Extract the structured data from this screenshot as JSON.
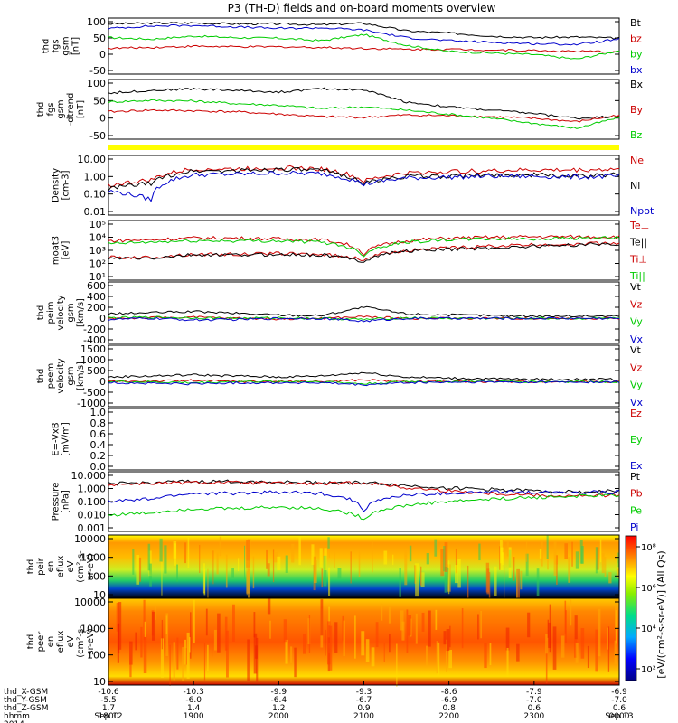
{
  "title": "P3 (TH-D) fields and on-board moments overview",
  "colors": {
    "black": "#000000",
    "red": "#cc0000",
    "green": "#00cc00",
    "blue": "#0000cc",
    "yellow": "#ffff00"
  },
  "panels": [
    {
      "id": "fgs_gsm",
      "ylabel": [
        "thd",
        "fgs",
        "gsm",
        "[nT]"
      ],
      "ticks": [
        "100",
        "50",
        "0",
        "-50"
      ],
      "scale": "linear",
      "legend": [
        {
          "label": "Bt",
          "color": "black"
        },
        {
          "label": "bz",
          "color": "red"
        },
        {
          "label": "by",
          "color": "green"
        },
        {
          "label": "bx",
          "color": "blue"
        }
      ]
    },
    {
      "id": "fgs_gsm_dtrend",
      "ylabel": [
        "thd",
        "fgs",
        "gsm",
        "-dtrend",
        "[nT]"
      ],
      "ticks": [
        "100",
        "50",
        "0",
        "-50"
      ],
      "scale": "linear",
      "legend": [
        {
          "label": "Bx",
          "color": "black"
        },
        {
          "label": "By",
          "color": "red"
        },
        {
          "label": "Bz",
          "color": "green"
        }
      ]
    },
    {
      "id": "density",
      "ylabel": [
        "Density",
        "[cm-3]"
      ],
      "ticks": [
        "10.00",
        "1.00",
        "0.10",
        "0.01"
      ],
      "scale": "log",
      "legend": [
        {
          "label": "Ne",
          "color": "red"
        },
        {
          "label": "Ni",
          "color": "black"
        },
        {
          "label": "Npot",
          "color": "blue"
        }
      ]
    },
    {
      "id": "moat3",
      "ylabel": [
        "moat3",
        "[eV]"
      ],
      "ticks": [
        "10⁵",
        "10⁴",
        "10³",
        "10²",
        "10¹"
      ],
      "scale": "log",
      "legend": [
        {
          "label": "Te⊥",
          "color": "red"
        },
        {
          "label": "Te||",
          "color": "black"
        },
        {
          "label": "Ti⊥",
          "color": "red"
        },
        {
          "label": "Ti||",
          "color": "green"
        }
      ]
    },
    {
      "id": "peim_velocity",
      "ylabel": [
        "thd",
        "peim",
        "velocity",
        "gsm",
        "[km/s]"
      ],
      "ticks": [
        "600",
        "400",
        "200",
        "0",
        "-200",
        "-400"
      ],
      "scale": "linear",
      "legend": [
        {
          "label": "Vt",
          "color": "black"
        },
        {
          "label": "Vz",
          "color": "red"
        },
        {
          "label": "Vy",
          "color": "green"
        },
        {
          "label": "Vx",
          "color": "blue"
        }
      ]
    },
    {
      "id": "peem_velocity",
      "ylabel": [
        "thd",
        "peem",
        "velocity",
        "gsm",
        "[km/s]"
      ],
      "ticks": [
        "1500",
        "1000",
        "500",
        "0",
        "-500",
        "-1000"
      ],
      "scale": "linear",
      "legend": [
        {
          "label": "Vt",
          "color": "black"
        },
        {
          "label": "Vz",
          "color": "red"
        },
        {
          "label": "Vy",
          "color": "green"
        },
        {
          "label": "Vx",
          "color": "blue"
        }
      ]
    },
    {
      "id": "efield",
      "ylabel": [
        "E=-VxB",
        "[mV/m]"
      ],
      "ticks": [
        "1.0",
        "0.8",
        "0.6",
        "0.4",
        "0.2",
        "0.0"
      ],
      "scale": "linear",
      "legend": [
        {
          "label": "Ez",
          "color": "red"
        },
        {
          "label": "Ey",
          "color": "green"
        },
        {
          "label": "Ex",
          "color": "blue"
        }
      ]
    },
    {
      "id": "pressure",
      "ylabel": [
        "Pressure",
        "[nPa]"
      ],
      "ticks": [
        "10.000",
        "1.000",
        "0.100",
        "0.010",
        "0.001"
      ],
      "scale": "log",
      "legend": [
        {
          "label": "Pt",
          "color": "black"
        },
        {
          "label": "Pb",
          "color": "red"
        },
        {
          "label": "Pe",
          "color": "green"
        },
        {
          "label": "Pi",
          "color": "blue"
        }
      ]
    },
    {
      "id": "peir_en_eflux",
      "ylabel": [
        "thd",
        "peir",
        "en",
        "eflux",
        "eV",
        "(cm²-s-",
        "sr-eV)"
      ],
      "ticks": [
        "10000",
        "1000",
        "100",
        "10"
      ],
      "scale": "log"
    },
    {
      "id": "peer_en_eflux",
      "ylabel": [
        "thd",
        "peer",
        "en",
        "eflux",
        "eV",
        "(cm²-s-",
        "sr-eV)"
      ],
      "ticks": [
        "10000",
        "1000",
        "100",
        "10"
      ],
      "scale": "log"
    }
  ],
  "colorbar": {
    "ticks": [
      "10⁸",
      "10⁶",
      "10⁴",
      "10²"
    ],
    "label": "[eV/(cm²-s-sr-eV)] (All Qs)"
  },
  "xaxis": {
    "row_labels": [
      "thd_X-GSM",
      "thd_Y-GSM",
      "thd_Z-GSM",
      "hhmm",
      "2014"
    ],
    "columns": [
      {
        "x": "-10.6",
        "y": "-5.5",
        "z": "1.7",
        "hhmm": "1800",
        "date": "Sep 12"
      },
      {
        "x": "-10.3",
        "y": "-6.0",
        "z": "1.4",
        "hhmm": "1900",
        "date": ""
      },
      {
        "x": "-9.9",
        "y": "-6.4",
        "z": "1.2",
        "hhmm": "2000",
        "date": ""
      },
      {
        "x": "-9.3",
        "y": "-6.7",
        "z": "0.9",
        "hhmm": "2100",
        "date": ""
      },
      {
        "x": "-8.6",
        "y": "-6.9",
        "z": "0.8",
        "hhmm": "2200",
        "date": ""
      },
      {
        "x": "-7.9",
        "y": "-7.0",
        "z": "0.6",
        "hhmm": "2300",
        "date": ""
      },
      {
        "x": "-6.9",
        "y": "-7.0",
        "z": "0.6",
        "hhmm": "0000",
        "date": "Sep 13"
      }
    ]
  },
  "chart_data": {
    "type": "line",
    "title": "P3 (TH-D) fields and on-board moments overview",
    "x": [
      "1800",
      "1830",
      "1900",
      "1930",
      "2000",
      "2030",
      "2100",
      "2130",
      "2200",
      "2230",
      "2300",
      "2330",
      "0000"
    ],
    "panels": [
      {
        "id": "fgs_gsm",
        "ylim": [
          -60,
          105
        ],
        "series": [
          {
            "name": "Bt",
            "color": "black",
            "values": [
              95,
              97,
              98,
              95,
              95,
              92,
              97,
              72,
              65,
              55,
              50,
              52,
              48
            ]
          },
          {
            "name": "bz",
            "color": "red",
            "values": [
              15,
              18,
              22,
              20,
              20,
              18,
              15,
              12,
              12,
              10,
              8,
              5,
              4
            ]
          },
          {
            "name": "by",
            "color": "green",
            "values": [
              50,
              45,
              55,
              50,
              48,
              40,
              60,
              25,
              5,
              0,
              -5,
              -20,
              8
            ]
          },
          {
            "name": "bx",
            "color": "blue",
            "values": [
              80,
              88,
              90,
              85,
              80,
              82,
              75,
              50,
              40,
              35,
              30,
              28,
              45
            ]
          }
        ]
      },
      {
        "id": "fgs_gsm_dtrend",
        "ylim": [
          -60,
          105
        ],
        "series": [
          {
            "name": "Bx",
            "color": "black",
            "values": [
              72,
              80,
              85,
              80,
              75,
              85,
              82,
              45,
              30,
              20,
              10,
              -5,
              2
            ]
          },
          {
            "name": "By",
            "color": "red",
            "values": [
              15,
              20,
              18,
              15,
              8,
              0,
              -2,
              5,
              3,
              0,
              -5,
              -15,
              5
            ]
          },
          {
            "name": "Bz",
            "color": "green",
            "values": [
              45,
              50,
              48,
              40,
              35,
              25,
              30,
              20,
              8,
              -5,
              -20,
              -35,
              -2
            ]
          }
        ]
      },
      {
        "id": "density",
        "ylim": [
          0.01,
          10
        ],
        "series": [
          {
            "name": "Ne",
            "color": "red",
            "values": [
              0.3,
              0.6,
              2.5,
              2.5,
              3,
              2.5,
              0.5,
              1.5,
              1.8,
              2,
              2.2,
              2.2,
              2.5
            ]
          },
          {
            "name": "Ni",
            "color": "black",
            "values": [
              0.2,
              0.4,
              2.0,
              2.0,
              2.5,
              2.0,
              0.4,
              1.0,
              1.0,
              1.2,
              1.2,
              1.0,
              1.2
            ]
          },
          {
            "name": "Npot",
            "color": "blue",
            "values": [
              0.15,
              0.05,
              1.2,
              1.3,
              1.5,
              1.4,
              0.35,
              0.8,
              0.9,
              1.0,
              1.0,
              0.9,
              1.0
            ]
          }
        ]
      },
      {
        "id": "moat3",
        "ylim": [
          10,
          100000
        ],
        "series": [
          {
            "name": "Te⊥",
            "color": "red",
            "values": [
              300,
              300,
              500,
              500,
              600,
              500,
              200,
              1000,
              1500,
              2000,
              2500,
              3000,
              3500
            ]
          },
          {
            "name": "Te||",
            "color": "black",
            "values": [
              250,
              250,
              450,
              450,
              500,
              450,
              150,
              900,
              1200,
              1500,
              2000,
              2500,
              3000
            ]
          },
          {
            "name": "Ti⊥",
            "color": "red",
            "values": [
              5000,
              6000,
              8000,
              8000,
              7000,
              6000,
              500,
              5000,
              8000,
              9000,
              10000,
              10000,
              10000
            ]
          },
          {
            "name": "Ti||",
            "color": "green",
            "values": [
              3000,
              4000,
              5000,
              5000,
              5000,
              4000,
              400,
              4000,
              6000,
              7000,
              7000,
              8000,
              8000
            ]
          }
        ]
      },
      {
        "id": "peim_velocity",
        "ylim": [
          -400,
          600
        ],
        "series": [
          {
            "name": "Vt",
            "color": "black",
            "values": [
              80,
              100,
              120,
              90,
              60,
              50,
              200,
              80,
              60,
              50,
              40,
              40,
              40
            ]
          },
          {
            "name": "Vz",
            "color": "red",
            "values": [
              0,
              10,
              20,
              0,
              -10,
              0,
              30,
              0,
              0,
              0,
              0,
              0,
              0
            ]
          },
          {
            "name": "Vy",
            "color": "green",
            "values": [
              10,
              20,
              10,
              0,
              10,
              0,
              -20,
              10,
              0,
              0,
              0,
              0,
              0
            ]
          },
          {
            "name": "Vx",
            "color": "blue",
            "values": [
              -20,
              0,
              -30,
              -20,
              0,
              0,
              -50,
              0,
              0,
              0,
              0,
              0,
              0
            ]
          }
        ]
      },
      {
        "id": "peem_velocity",
        "ylim": [
          -1000,
          1500
        ],
        "series": [
          {
            "name": "Vt",
            "color": "black",
            "values": [
              200,
              250,
              300,
              250,
              200,
              250,
              400,
              200,
              150,
              120,
              100,
              100,
              100
            ]
          },
          {
            "name": "Vz",
            "color": "red",
            "values": [
              0,
              20,
              50,
              0,
              0,
              0,
              80,
              0,
              0,
              0,
              0,
              0,
              0
            ]
          },
          {
            "name": "Vy",
            "color": "green",
            "values": [
              0,
              -20,
              -50,
              0,
              0,
              0,
              -100,
              0,
              0,
              0,
              0,
              0,
              0
            ]
          },
          {
            "name": "Vx",
            "color": "blue",
            "values": [
              -50,
              -80,
              -100,
              -60,
              -50,
              -60,
              -150,
              -50,
              -30,
              -20,
              -20,
              -20,
              -20
            ]
          }
        ]
      },
      {
        "id": "efield",
        "ylim": [
          0,
          1
        ],
        "series": []
      },
      {
        "id": "pressure",
        "ylim": [
          0.001,
          10
        ],
        "series": [
          {
            "name": "Pt",
            "color": "black",
            "values": [
              2,
              2.5,
              3,
              3,
              2.8,
              2.5,
              2.5,
              1.5,
              1.0,
              0.8,
              0.6,
              0.5,
              0.6
            ]
          },
          {
            "name": "Pb",
            "color": "red",
            "values": [
              1.8,
              2.2,
              2.5,
              2.5,
              2.2,
              2.0,
              2.4,
              1.0,
              0.6,
              0.4,
              0.3,
              0.25,
              0.3
            ]
          },
          {
            "name": "Pe",
            "color": "green",
            "values": [
              0.01,
              0.015,
              0.03,
              0.03,
              0.04,
              0.03,
              0.005,
              0.05,
              0.1,
              0.15,
              0.2,
              0.25,
              0.3
            ]
          },
          {
            "name": "Pi",
            "color": "blue",
            "values": [
              0.1,
              0.15,
              0.4,
              0.4,
              0.5,
              0.4,
              0.02,
              0.3,
              0.4,
              0.5,
              0.5,
              0.5,
              0.5
            ]
          }
        ]
      }
    ]
  }
}
